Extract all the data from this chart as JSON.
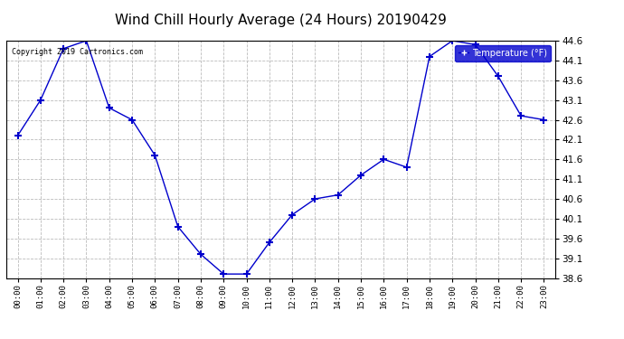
{
  "title": "Wind Chill Hourly Average (24 Hours) 20190429",
  "copyright": "Copyright 2019 Cartronics.com",
  "legend_label": "Temperature (°F)",
  "hours": [
    "00:00",
    "01:00",
    "02:00",
    "03:00",
    "04:00",
    "05:00",
    "06:00",
    "07:00",
    "08:00",
    "09:00",
    "10:00",
    "11:00",
    "12:00",
    "13:00",
    "14:00",
    "15:00",
    "16:00",
    "17:00",
    "18:00",
    "19:00",
    "20:00",
    "21:00",
    "22:00",
    "23:00"
  ],
  "values": [
    42.2,
    43.1,
    44.4,
    44.6,
    42.9,
    42.6,
    41.7,
    39.9,
    39.2,
    38.7,
    38.7,
    39.5,
    40.2,
    40.6,
    40.7,
    41.2,
    41.6,
    41.4,
    44.2,
    44.6,
    44.5,
    43.7,
    42.7,
    42.6
  ],
  "ylim": [
    38.6,
    44.6
  ],
  "yticks": [
    38.6,
    39.1,
    39.6,
    40.1,
    40.6,
    41.1,
    41.6,
    42.1,
    42.6,
    43.1,
    43.6,
    44.1,
    44.6
  ],
  "line_color": "#0000cc",
  "marker": "+",
  "marker_color": "#0000cc",
  "bg_color": "#ffffff",
  "plot_bg_color": "#ffffff",
  "grid_color": "#bbbbbb",
  "title_fontsize": 11,
  "legend_bg": "#0000cc",
  "legend_fg": "#ffffff"
}
